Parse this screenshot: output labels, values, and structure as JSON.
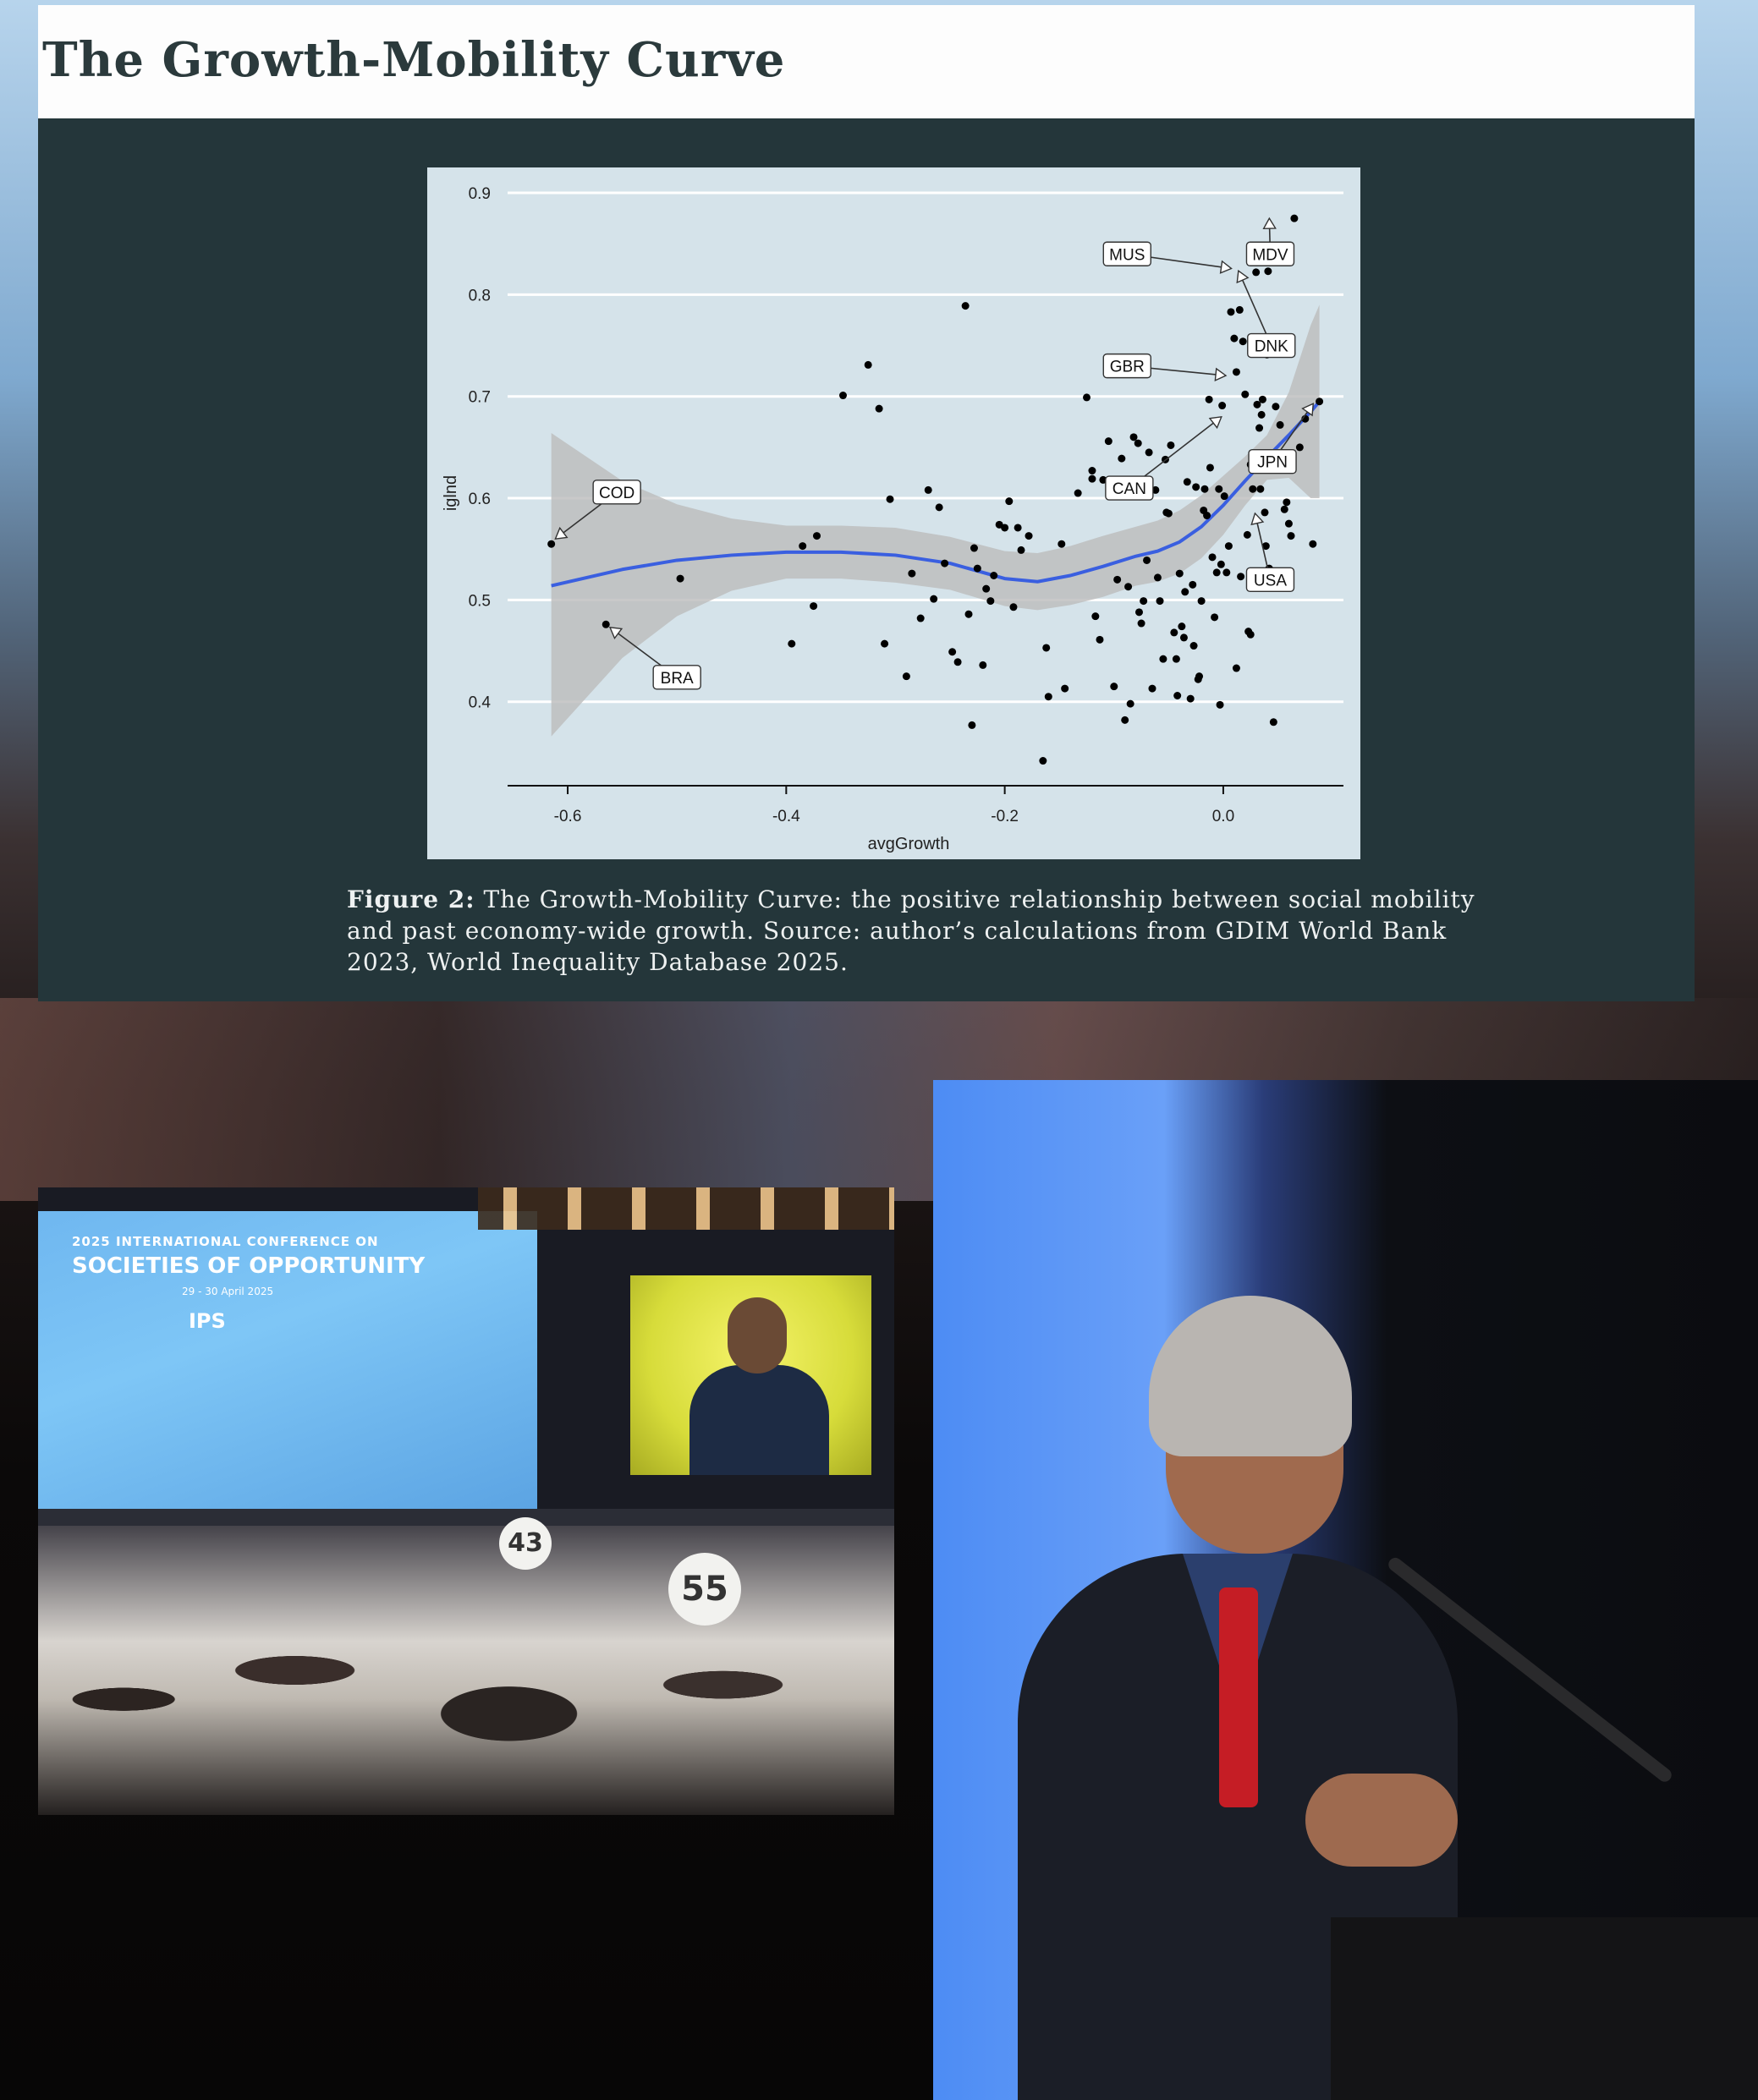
{
  "header": {
    "title": "The Growth-Mobility Curve"
  },
  "figure": {
    "caption_label": "Figure 2:",
    "caption_text": "The Growth-Mobility Curve: the positive relationship between social mobility and past economy-wide growth. Source: author’s calculations from GDIM World Bank 2023, World Inequality Database 2025."
  },
  "chart_data": {
    "type": "scatter",
    "xlabel": "avgGrowth",
    "ylabel": "iglnd",
    "xlim": [
      -0.655,
      0.11
    ],
    "ylim": [
      0.315,
      0.915
    ],
    "x_ticks": [
      -0.6,
      -0.4,
      -0.2,
      0.0
    ],
    "x_tick_labels": [
      "-0.6",
      "-0.4",
      "-0.2",
      "0.0"
    ],
    "y_ticks": [
      0.4,
      0.5,
      0.6,
      0.7,
      0.8,
      0.9
    ],
    "y_tick_labels": [
      "0.4",
      "0.5",
      "0.6",
      "0.7",
      "0.8",
      "0.9"
    ],
    "grid": "horizontal",
    "colors": {
      "panel": "#d5e3ea",
      "points": "#000000",
      "smooth": "#3a5fe0",
      "band": "#bcbcbc"
    },
    "points": [
      [
        -0.615,
        0.555
      ],
      [
        -0.565,
        0.476
      ],
      [
        -0.497,
        0.521
      ],
      [
        -0.395,
        0.457
      ],
      [
        -0.385,
        0.553
      ],
      [
        -0.375,
        0.494
      ],
      [
        -0.372,
        0.563
      ],
      [
        -0.348,
        0.701
      ],
      [
        -0.325,
        0.731
      ],
      [
        -0.315,
        0.688
      ],
      [
        -0.31,
        0.457
      ],
      [
        -0.305,
        0.599
      ],
      [
        -0.29,
        0.425
      ],
      [
        -0.285,
        0.526
      ],
      [
        -0.277,
        0.482
      ],
      [
        -0.27,
        0.608
      ],
      [
        -0.265,
        0.501
      ],
      [
        -0.26,
        0.591
      ],
      [
        -0.255,
        0.536
      ],
      [
        -0.248,
        0.449
      ],
      [
        -0.243,
        0.439
      ],
      [
        -0.236,
        0.789
      ],
      [
        -0.233,
        0.486
      ],
      [
        -0.23,
        0.377
      ],
      [
        -0.228,
        0.551
      ],
      [
        -0.225,
        0.531
      ],
      [
        -0.22,
        0.436
      ],
      [
        -0.217,
        0.511
      ],
      [
        -0.213,
        0.499
      ],
      [
        -0.21,
        0.524
      ],
      [
        -0.205,
        0.574
      ],
      [
        -0.2,
        0.571
      ],
      [
        -0.196,
        0.597
      ],
      [
        -0.192,
        0.493
      ],
      [
        -0.188,
        0.571
      ],
      [
        -0.185,
        0.549
      ],
      [
        -0.178,
        0.563
      ],
      [
        -0.165,
        0.342
      ],
      [
        -0.162,
        0.453
      ],
      [
        -0.16,
        0.405
      ],
      [
        -0.145,
        0.413
      ],
      [
        -0.148,
        0.555
      ],
      [
        -0.133,
        0.605
      ],
      [
        -0.125,
        0.699
      ],
      [
        -0.12,
        0.619
      ],
      [
        -0.12,
        0.627
      ],
      [
        -0.117,
        0.484
      ],
      [
        -0.113,
        0.461
      ],
      [
        -0.11,
        0.618
      ],
      [
        -0.105,
        0.656
      ],
      [
        -0.1,
        0.415
      ],
      [
        -0.097,
        0.52
      ],
      [
        -0.093,
        0.639
      ],
      [
        -0.09,
        0.382
      ],
      [
        -0.087,
        0.513
      ],
      [
        -0.085,
        0.398
      ],
      [
        -0.082,
        0.66
      ],
      [
        -0.08,
        0.618
      ],
      [
        -0.078,
        0.654
      ],
      [
        -0.077,
        0.488
      ],
      [
        -0.075,
        0.477
      ],
      [
        -0.073,
        0.499
      ],
      [
        -0.07,
        0.539
      ],
      [
        -0.068,
        0.645
      ],
      [
        -0.065,
        0.413
      ],
      [
        -0.062,
        0.608
      ],
      [
        -0.06,
        0.522
      ],
      [
        -0.058,
        0.499
      ],
      [
        -0.055,
        0.442
      ],
      [
        -0.053,
        0.638
      ],
      [
        -0.052,
        0.586
      ],
      [
        -0.05,
        0.585
      ],
      [
        -0.048,
        0.652
      ],
      [
        -0.045,
        0.468
      ],
      [
        -0.043,
        0.442
      ],
      [
        -0.042,
        0.406
      ],
      [
        -0.04,
        0.526
      ],
      [
        -0.038,
        0.474
      ],
      [
        -0.036,
        0.463
      ],
      [
        -0.035,
        0.508
      ],
      [
        -0.033,
        0.616
      ],
      [
        -0.03,
        0.403
      ],
      [
        -0.028,
        0.515
      ],
      [
        -0.027,
        0.455
      ],
      [
        -0.025,
        0.611
      ],
      [
        -0.023,
        0.422
      ],
      [
        -0.022,
        0.425
      ],
      [
        -0.02,
        0.499
      ],
      [
        -0.018,
        0.588
      ],
      [
        -0.017,
        0.609
      ],
      [
        -0.015,
        0.583
      ],
      [
        -0.013,
        0.697
      ],
      [
        -0.012,
        0.63
      ],
      [
        -0.01,
        0.542
      ],
      [
        -0.008,
        0.483
      ],
      [
        -0.006,
        0.527
      ],
      [
        -0.004,
        0.609
      ],
      [
        -0.003,
        0.397
      ],
      [
        -0.002,
        0.535
      ],
      [
        -0.001,
        0.691
      ],
      [
        0.001,
        0.602
      ],
      [
        0.003,
        0.527
      ],
      [
        0.005,
        0.553
      ],
      [
        0.007,
        0.783
      ],
      [
        0.01,
        0.757
      ],
      [
        0.012,
        0.433
      ],
      [
        0.015,
        0.785
      ],
      [
        0.016,
        0.523
      ],
      [
        0.018,
        0.754
      ],
      [
        0.02,
        0.702
      ],
      [
        0.022,
        0.564
      ],
      [
        0.023,
        0.469
      ],
      [
        0.025,
        0.466
      ],
      [
        0.027,
        0.609
      ],
      [
        0.029,
        0.518
      ],
      [
        0.031,
        0.692
      ],
      [
        0.033,
        0.669
      ],
      [
        0.035,
        0.682
      ],
      [
        0.036,
        0.697
      ],
      [
        0.038,
        0.586
      ],
      [
        0.039,
        0.553
      ],
      [
        0.04,
        0.741
      ],
      [
        0.041,
        0.823
      ],
      [
        0.042,
        0.531
      ],
      [
        0.044,
        0.525
      ],
      [
        0.046,
        0.38
      ],
      [
        0.048,
        0.69
      ],
      [
        0.05,
        0.635
      ],
      [
        0.052,
        0.672
      ],
      [
        0.054,
        0.519
      ],
      [
        0.056,
        0.589
      ],
      [
        0.058,
        0.596
      ],
      [
        0.06,
        0.575
      ],
      [
        0.062,
        0.563
      ],
      [
        0.065,
        0.875
      ],
      [
        0.07,
        0.65
      ],
      [
        0.075,
        0.678
      ],
      [
        0.082,
        0.555
      ],
      [
        0.088,
        0.695
      ],
      [
        0.03,
        0.822
      ],
      [
        0.012,
        0.724
      ],
      [
        0.025,
        0.633
      ],
      [
        0.034,
        0.609
      ]
    ],
    "smooth_x": [
      -0.615,
      -0.55,
      -0.5,
      -0.45,
      -0.4,
      -0.35,
      -0.3,
      -0.25,
      -0.2,
      -0.17,
      -0.14,
      -0.11,
      -0.08,
      -0.06,
      -0.04,
      -0.02,
      0.0,
      0.02,
      0.04,
      0.06,
      0.08,
      0.088
    ],
    "smooth_y": [
      0.514,
      0.53,
      0.539,
      0.544,
      0.547,
      0.547,
      0.544,
      0.536,
      0.521,
      0.518,
      0.524,
      0.533,
      0.543,
      0.548,
      0.557,
      0.572,
      0.593,
      0.617,
      0.64,
      0.662,
      0.685,
      0.695
    ],
    "band_upper": [
      0.664,
      0.617,
      0.594,
      0.58,
      0.573,
      0.573,
      0.571,
      0.562,
      0.548,
      0.546,
      0.553,
      0.563,
      0.572,
      0.578,
      0.588,
      0.603,
      0.622,
      0.641,
      0.662,
      0.704,
      0.77,
      0.79
    ],
    "band_lower": [
      0.366,
      0.443,
      0.484,
      0.509,
      0.521,
      0.521,
      0.517,
      0.51,
      0.494,
      0.49,
      0.495,
      0.503,
      0.514,
      0.518,
      0.526,
      0.541,
      0.564,
      0.593,
      0.618,
      0.62,
      0.6,
      0.6
    ],
    "annotations": [
      {
        "label": "MUS",
        "box": [
          -0.088,
          0.84
        ],
        "target": [
          0.012,
          0.825
        ]
      },
      {
        "label": "MDV",
        "box": [
          0.043,
          0.84
        ],
        "target": [
          0.042,
          0.88
        ]
      },
      {
        "label": "DNK",
        "box": [
          0.044,
          0.75
        ],
        "target": [
          0.012,
          0.828
        ]
      },
      {
        "label": "GBR",
        "box": [
          -0.088,
          0.73
        ],
        "target": [
          0.007,
          0.72
        ]
      },
      {
        "label": "CAN",
        "box": [
          -0.086,
          0.61
        ],
        "target": [
          0.002,
          0.683
        ]
      },
      {
        "label": "JPN",
        "box": [
          0.045,
          0.636
        ],
        "target": [
          0.085,
          0.697
        ]
      },
      {
        "label": "USA",
        "box": [
          0.043,
          0.52
        ],
        "target": [
          0.028,
          0.59
        ]
      },
      {
        "label": "COD",
        "box": [
          -0.555,
          0.606
        ],
        "target": [
          -0.615,
          0.557
        ]
      },
      {
        "label": "BRA",
        "box": [
          -0.5,
          0.424
        ],
        "target": [
          -0.565,
          0.476
        ]
      }
    ]
  },
  "photos": {
    "hall": {
      "conference_year_line": "2025 INTERNATIONAL CONFERENCE ON",
      "conference_name": "SOCIETIES OF OPPORTUNITY",
      "conference_dates": "29 - 30 April 2025",
      "org_logo": "IPS",
      "table_signs": [
        "43",
        "55"
      ],
      "icons": [
        "conference-hall-photo"
      ]
    },
    "speaker": {
      "icons": [
        "speaker-at-podium-photo"
      ]
    }
  }
}
